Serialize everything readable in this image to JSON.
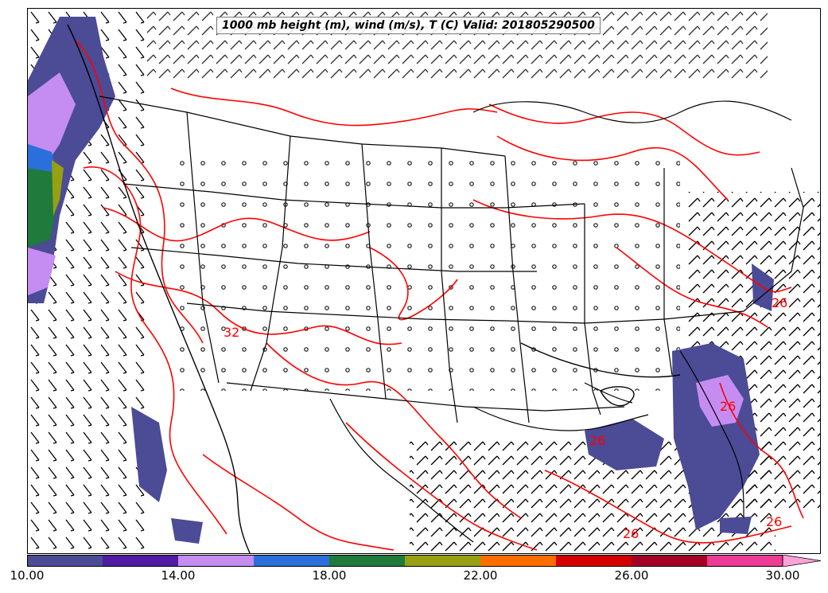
{
  "title": "1000 mb height (m), wind (m/s), T (C) Valid: 201805290500",
  "colorbar": {
    "colors": [
      "#4b4b96",
      "#4f1ca2",
      "#c58df2",
      "#2a6fdb",
      "#1f7a3c",
      "#96a012",
      "#ff6d00",
      "#d40000",
      "#a20025",
      "#ed3c96",
      "#ffa2d8"
    ],
    "boundaries": [
      10,
      12,
      14,
      16,
      18,
      20,
      22,
      24,
      26,
      28,
      30
    ],
    "tick_labels": [
      "10.00",
      "14.00",
      "18.00",
      "22.00",
      "26.00",
      "30.00"
    ],
    "extend": "max"
  },
  "contour_labels": [
    {
      "text": "32"
    },
    {
      "text": "26"
    },
    {
      "text": "26"
    },
    {
      "text": "26"
    },
    {
      "text": "26"
    },
    {
      "text": "26"
    }
  ],
  "colors": {
    "temperature_contour": "#ff0000",
    "height_contour": "#000000",
    "borders": "#000000"
  }
}
